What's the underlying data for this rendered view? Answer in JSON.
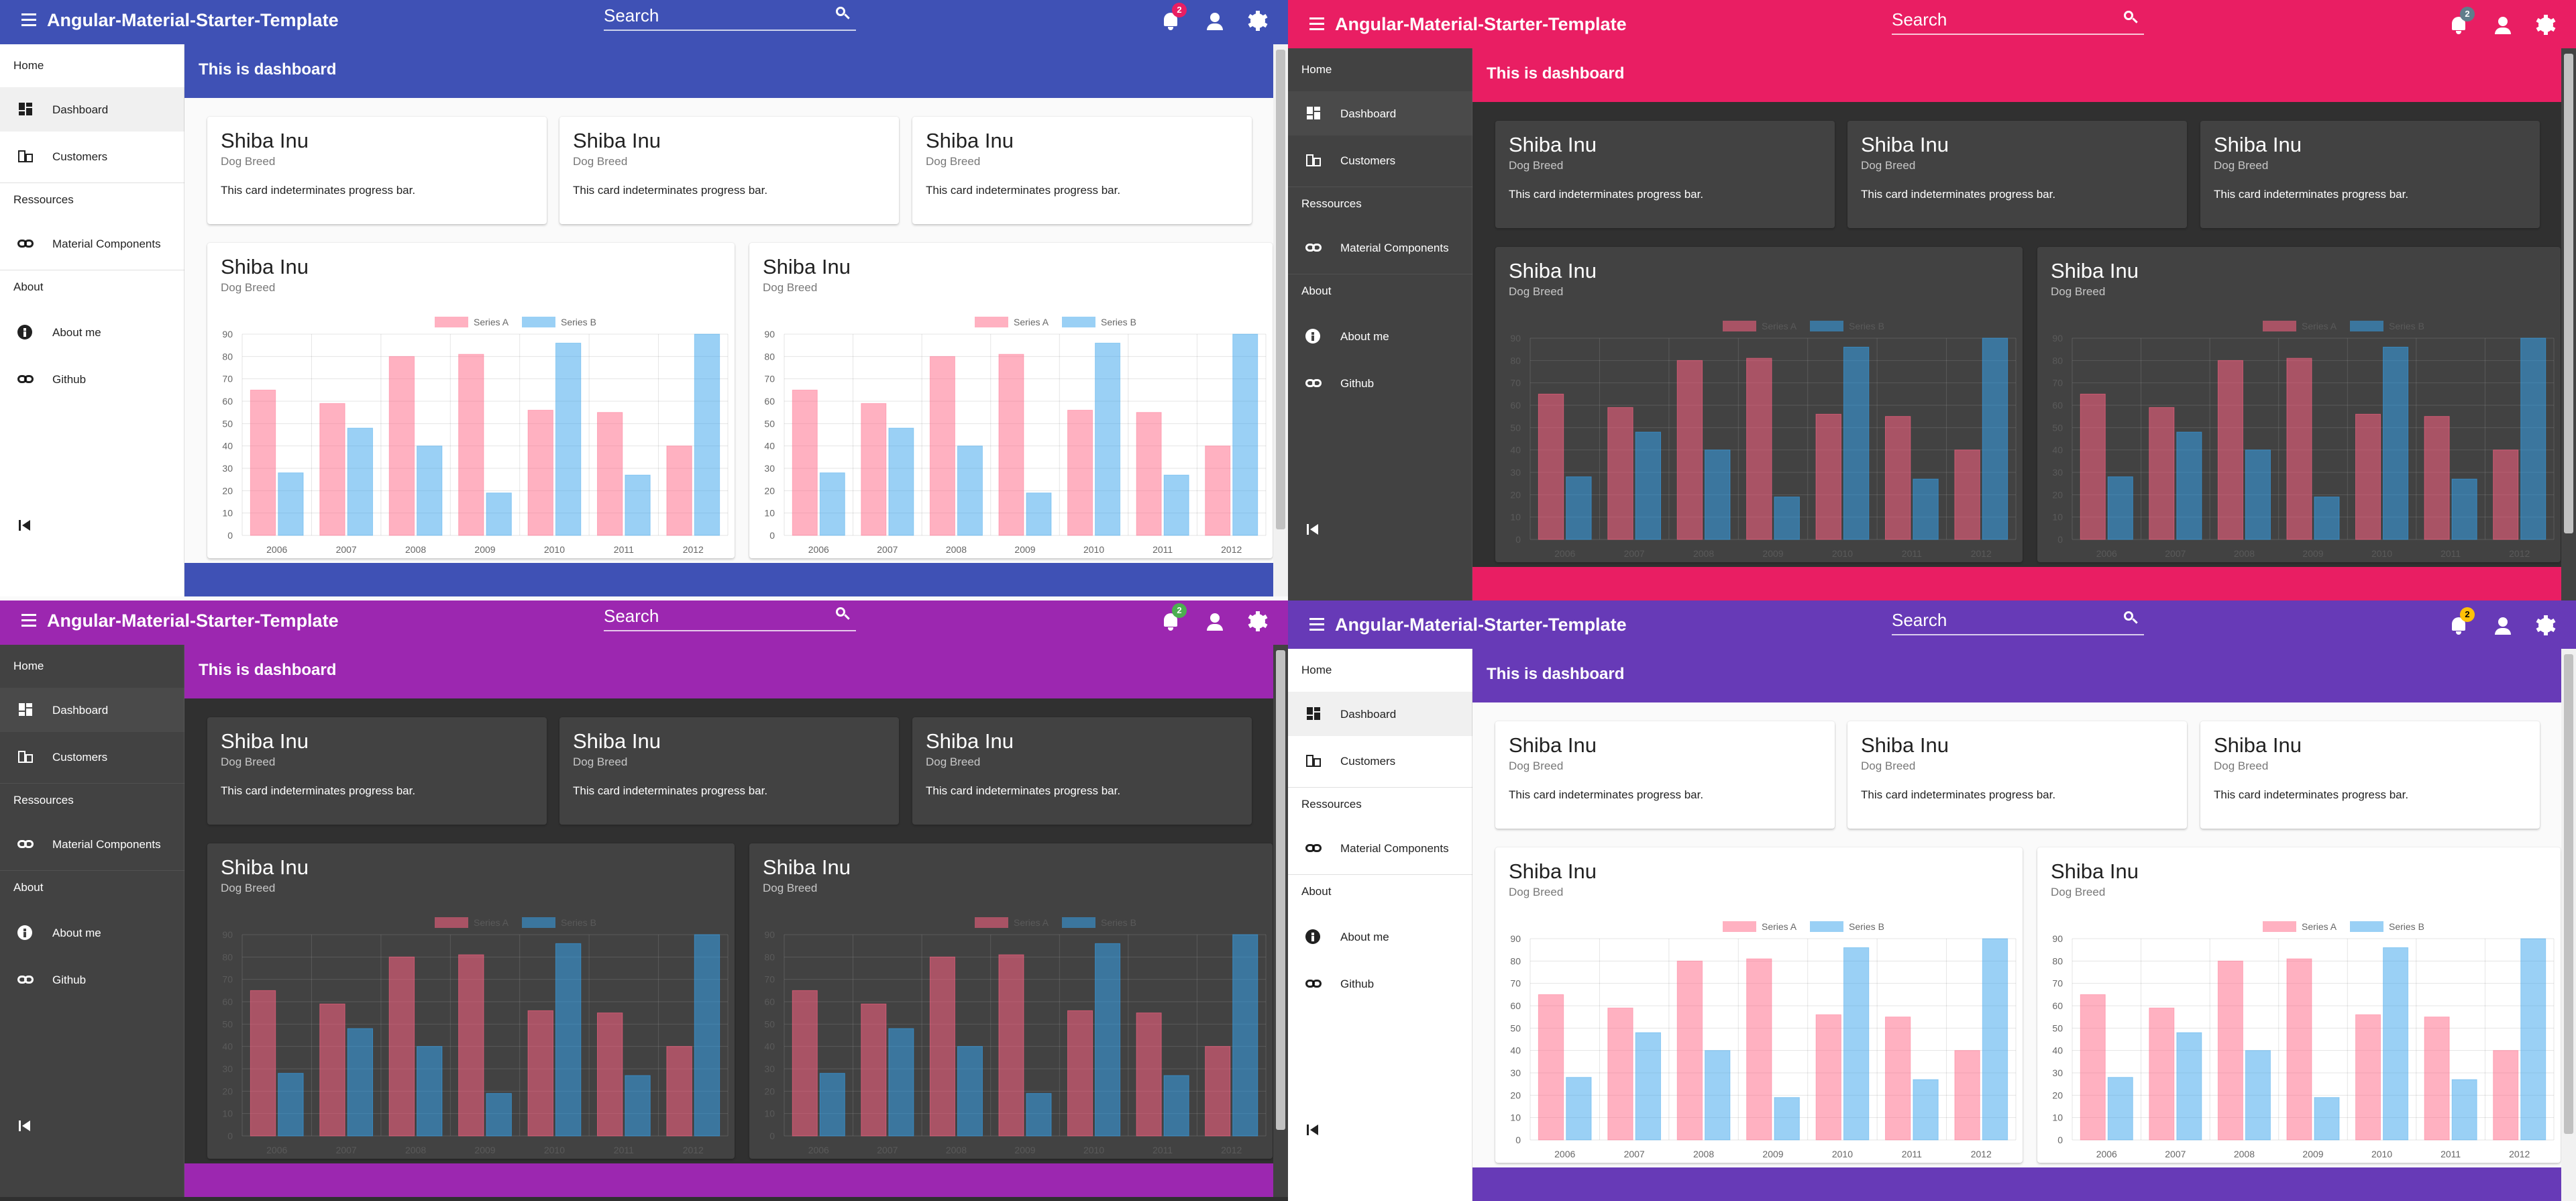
{
  "app": {
    "title": "Angular-Material-Starter-Template",
    "search_label": "Search",
    "dashboard_title": "This is dashboard"
  },
  "sidebar": {
    "sections": [
      {
        "label": "Home"
      },
      {
        "label": "Ressources"
      },
      {
        "label": "About"
      }
    ],
    "items": [
      {
        "label": "Dashboard",
        "icon": "dashboard-icon"
      },
      {
        "label": "Customers",
        "icon": "business-icon"
      },
      {
        "label": "Material Components",
        "icon": "link-icon"
      },
      {
        "label": "About me",
        "icon": "info-icon"
      },
      {
        "label": "Github",
        "icon": "link-icon"
      }
    ]
  },
  "cards": {
    "small": [
      {
        "title": "Shiba Inu",
        "subtitle": "Dog Breed",
        "text": "This card indeterminates progress bar."
      },
      {
        "title": "Shiba Inu",
        "subtitle": "Dog Breed",
        "text": "This card indeterminates progress bar."
      },
      {
        "title": "Shiba Inu",
        "subtitle": "Dog Breed",
        "text": "This card indeterminates progress bar."
      }
    ],
    "charts": [
      {
        "title": "Shiba Inu",
        "subtitle": "Dog Breed"
      },
      {
        "title": "Shiba Inu",
        "subtitle": "Dog Breed"
      }
    ]
  },
  "themes": [
    {
      "name": "indigo-light",
      "primary": "#3f51b5",
      "dark": false,
      "badge": "2",
      "badge_color": "#e91e63",
      "badge_text": "#ffffff"
    },
    {
      "name": "pink-dark",
      "primary": "#e91e63",
      "dark": true,
      "badge": "2",
      "badge_color": "#607d8b",
      "badge_text": "#ffffff"
    },
    {
      "name": "purple-dark",
      "primary": "#9c27b0",
      "dark": true,
      "badge": "2",
      "badge_color": "#4caf50",
      "badge_text": "#ffffff"
    },
    {
      "name": "deep-purple-light",
      "primary": "#673ab7",
      "dark": false,
      "badge": "2",
      "badge_color": "#ffc107",
      "badge_text": "#000000"
    }
  ],
  "chart_data": {
    "type": "bar",
    "categories": [
      "2006",
      "2007",
      "2008",
      "2009",
      "2010",
      "2011",
      "2012"
    ],
    "series": [
      {
        "name": "Series A",
        "values": [
          65,
          59,
          80,
          81,
          56,
          55,
          40
        ],
        "color": "#ff6384"
      },
      {
        "name": "Series B",
        "values": [
          28,
          48,
          40,
          19,
          86,
          27,
          90
        ],
        "color": "#36a2eb"
      }
    ],
    "ylim": [
      0,
      90
    ],
    "yticks": [
      "0",
      "10",
      "20",
      "30",
      "40",
      "50",
      "60",
      "70",
      "80",
      "90"
    ],
    "legend": "top",
    "grid": true
  }
}
